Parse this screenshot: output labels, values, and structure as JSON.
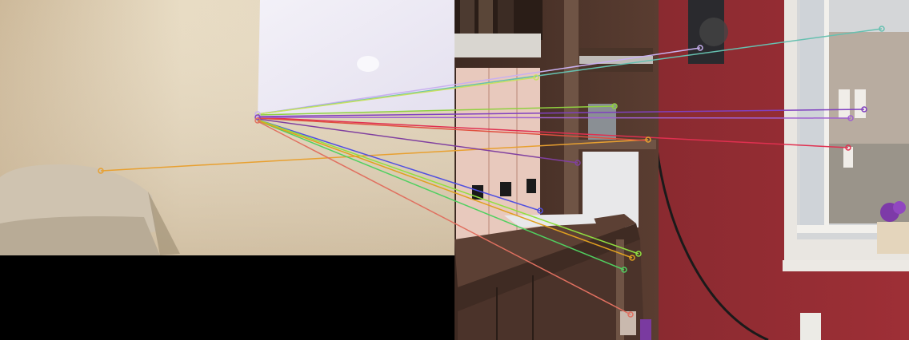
{
  "figure": {
    "type": "feature-match-visualization",
    "left_image": {
      "content": "wall-corner-with-chair"
    },
    "right_image": {
      "content": "shelving-unit-and-window"
    },
    "match_colors": [
      "#e8a030",
      "#c9b0f0",
      "#66c0b0",
      "#c8e060",
      "#90d040",
      "#8040c0",
      "#e03050",
      "#a060d0",
      "#e05040",
      "#8040a0",
      "#5050e0",
      "#90e040",
      "#50d060",
      "#e0a020",
      "#e07060"
    ]
  }
}
